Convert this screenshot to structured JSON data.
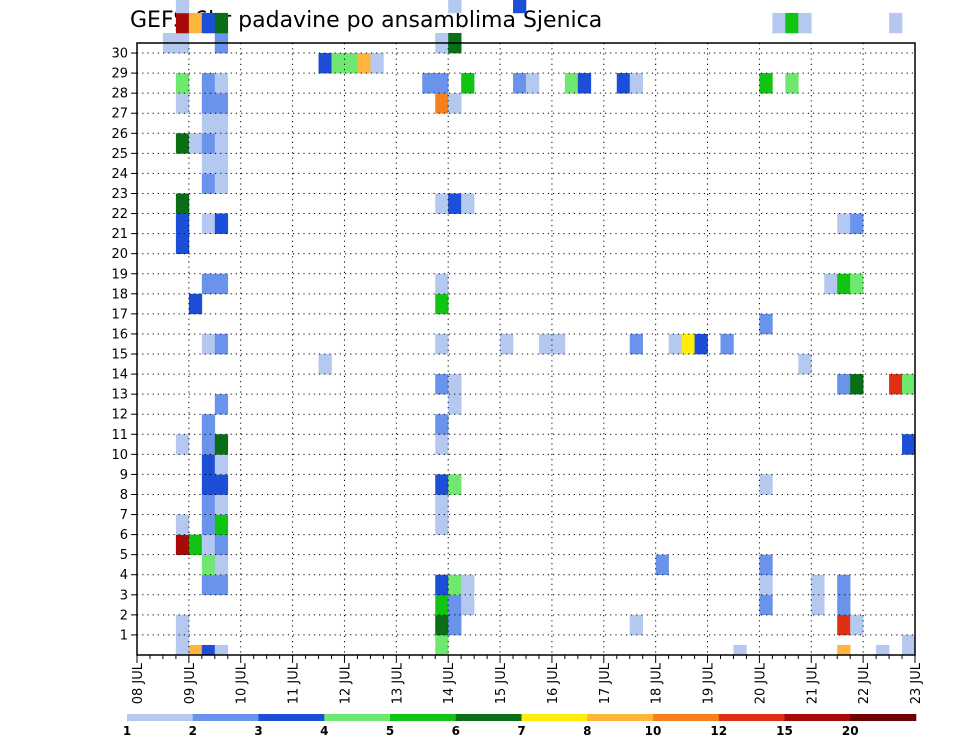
{
  "chart_data": {
    "type": "heatmap",
    "title": "GEFS 6hr padavine po ansamblima Sjenica",
    "xlabel": "",
    "ylabel": "",
    "x_ticks": [
      "08 JUL",
      "09 JUL",
      "10 JUL",
      "11 JUL",
      "12 JUL",
      "13 JUL",
      "14 JUL",
      "15 JUL",
      "16 JUL",
      "17 JUL",
      "18 JUL",
      "19 JUL",
      "20 JUL",
      "21 JUL",
      "22 JUL",
      "23 JUL"
    ],
    "x_range_days": [
      0,
      15
    ],
    "x_step_days": 0.25,
    "y_ticks": [
      "1",
      "2",
      "3",
      "4",
      "5",
      "6",
      "7",
      "8",
      "9",
      "10",
      "11",
      "12",
      "13",
      "14",
      "15",
      "16",
      "17",
      "18",
      "19",
      "20",
      "21",
      "22",
      "23",
      "24",
      "25",
      "26",
      "27",
      "28",
      "29",
      "30"
    ],
    "y_range": [
      0,
      30
    ],
    "grid": true,
    "legend": {
      "position": "bottom",
      "labels": [
        "1",
        "2",
        "3",
        "4",
        "5",
        "6",
        "7",
        "8",
        "10",
        "12",
        "15",
        "20"
      ],
      "colors": [
        "#b4c8f0",
        "#6a94ec",
        "#1c4ed8",
        "#6ee86e",
        "#12c412",
        "#0a6e16",
        "#ffec0a",
        "#ffb43c",
        "#f8801c",
        "#e03014",
        "#a80a0a",
        "#6e0000"
      ]
    },
    "cells": [
      [
        0.75,
        0,
        6
      ],
      [
        1,
        0,
        7
      ],
      [
        1.25,
        0,
        2
      ],
      [
        1.5,
        0,
        0
      ],
      [
        11.5,
        0,
        0
      ],
      [
        13.5,
        0,
        7
      ],
      [
        14.25,
        0,
        0
      ],
      [
        0.75,
        1,
        0
      ],
      [
        5.75,
        1,
        3
      ],
      [
        14.75,
        1,
        0
      ],
      [
        0.75,
        2,
        0
      ],
      [
        5.75,
        2,
        5
      ],
      [
        6,
        2,
        1
      ],
      [
        9.5,
        2,
        0
      ],
      [
        13.5,
        2,
        9
      ],
      [
        13.75,
        2,
        0
      ],
      [
        5.75,
        3,
        4
      ],
      [
        6,
        3,
        1
      ],
      [
        6.25,
        3,
        0
      ],
      [
        12,
        3,
        1
      ],
      [
        13,
        3,
        0
      ],
      [
        13.5,
        3,
        1
      ],
      [
        1.25,
        4,
        1
      ],
      [
        1.5,
        4,
        1
      ],
      [
        5.75,
        4,
        2
      ],
      [
        6,
        4,
        3
      ],
      [
        6.25,
        4,
        0
      ],
      [
        12,
        4,
        0
      ],
      [
        13,
        4,
        0
      ],
      [
        13.5,
        4,
        1
      ],
      [
        1.25,
        5,
        3
      ],
      [
        1.5,
        5,
        0
      ],
      [
        10,
        5,
        1
      ],
      [
        12,
        5,
        1
      ],
      [
        0.75,
        6,
        10
      ],
      [
        1,
        6,
        4
      ],
      [
        1.25,
        6,
        0
      ],
      [
        1.5,
        6,
        1
      ],
      [
        0.75,
        7,
        0
      ],
      [
        1.25,
        7,
        1
      ],
      [
        1.5,
        7,
        4
      ],
      [
        5.75,
        7,
        0
      ],
      [
        1.25,
        8,
        1
      ],
      [
        1.5,
        8,
        0
      ],
      [
        5.75,
        8,
        0
      ],
      [
        1.25,
        9,
        2
      ],
      [
        1.5,
        9,
        2
      ],
      [
        5.75,
        9,
        2
      ],
      [
        6,
        9,
        3
      ],
      [
        12,
        9,
        0
      ],
      [
        1.25,
        10,
        2
      ],
      [
        1.5,
        10,
        0
      ],
      [
        0.75,
        11,
        0
      ],
      [
        1.25,
        11,
        1
      ],
      [
        1.5,
        11,
        5
      ],
      [
        5.75,
        11,
        0
      ],
      [
        14.75,
        11,
        2
      ],
      [
        1.25,
        12,
        1
      ],
      [
        5.75,
        12,
        1
      ],
      [
        1.5,
        13,
        1
      ],
      [
        6,
        13,
        0
      ],
      [
        5.75,
        14,
        1
      ],
      [
        6,
        14,
        0
      ],
      [
        13.5,
        14,
        1
      ],
      [
        13.75,
        14,
        5
      ],
      [
        14.5,
        14,
        9
      ],
      [
        14.75,
        14,
        3
      ],
      [
        3.5,
        15,
        0
      ],
      [
        12.75,
        15,
        0
      ],
      [
        1.25,
        16,
        0
      ],
      [
        1.5,
        16,
        1
      ],
      [
        5.75,
        16,
        0
      ],
      [
        7,
        16,
        0
      ],
      [
        7.75,
        16,
        0
      ],
      [
        8,
        16,
        0
      ],
      [
        9.5,
        16,
        1
      ],
      [
        10.25,
        16,
        0
      ],
      [
        10.5,
        16,
        6
      ],
      [
        10.75,
        16,
        2
      ],
      [
        11.25,
        16,
        1
      ],
      [
        12,
        17,
        1
      ],
      [
        1,
        18,
        2
      ],
      [
        5.75,
        18,
        4
      ],
      [
        1.25,
        19,
        1
      ],
      [
        1.5,
        19,
        1
      ],
      [
        5.75,
        19,
        0
      ],
      [
        13.25,
        19,
        0
      ],
      [
        13.5,
        19,
        4
      ],
      [
        13.75,
        19,
        3
      ],
      [
        0.75,
        21,
        2
      ],
      [
        0.75,
        22,
        2
      ],
      [
        1.25,
        22,
        0
      ],
      [
        1.5,
        22,
        2
      ],
      [
        13.5,
        22,
        0
      ],
      [
        13.75,
        22,
        1
      ],
      [
        0.75,
        23,
        5
      ],
      [
        5.75,
        23,
        0
      ],
      [
        6,
        23,
        2
      ],
      [
        6.25,
        23,
        0
      ],
      [
        1.25,
        24,
        1
      ],
      [
        1.5,
        24,
        0
      ],
      [
        1.25,
        25,
        0
      ],
      [
        1.5,
        25,
        0
      ],
      [
        0.75,
        26,
        5
      ],
      [
        1,
        26,
        0
      ],
      [
        1.25,
        26,
        1
      ],
      [
        1.5,
        26,
        0
      ],
      [
        1.25,
        27,
        0
      ],
      [
        1.5,
        27,
        0
      ],
      [
        0.75,
        28,
        0
      ],
      [
        1.25,
        28,
        1
      ],
      [
        1.5,
        28,
        1
      ],
      [
        5.75,
        28,
        8
      ],
      [
        6,
        28,
        0
      ],
      [
        0.75,
        29,
        3
      ],
      [
        1.25,
        29,
        1
      ],
      [
        1.5,
        29,
        0
      ],
      [
        5.5,
        29,
        1
      ],
      [
        5.75,
        29,
        1
      ],
      [
        6.25,
        29,
        4
      ],
      [
        7.25,
        29,
        1
      ],
      [
        7.5,
        29,
        0
      ],
      [
        8.25,
        29,
        3
      ],
      [
        8.5,
        29,
        2
      ],
      [
        9.25,
        29,
        2
      ],
      [
        9.5,
        29,
        0
      ],
      [
        12,
        29,
        4
      ],
      [
        12.5,
        29,
        3
      ],
      [
        3.5,
        30,
        2
      ],
      [
        3.75,
        30,
        3
      ],
      [
        4,
        30,
        3
      ],
      [
        4.25,
        30,
        7
      ],
      [
        4.5,
        30,
        0
      ],
      [
        0.5,
        31,
        0
      ],
      [
        0.75,
        31,
        0
      ],
      [
        1.5,
        31,
        1
      ],
      [
        5.75,
        31,
        0
      ],
      [
        6,
        31,
        5
      ],
      [
        0.75,
        32,
        10
      ],
      [
        1,
        32,
        7
      ],
      [
        1.25,
        32,
        2
      ],
      [
        1.5,
        32,
        5
      ],
      [
        12.25,
        32,
        0
      ],
      [
        12.5,
        32,
        4
      ],
      [
        12.75,
        32,
        0
      ],
      [
        14.5,
        32,
        0
      ],
      [
        0.75,
        33,
        0
      ],
      [
        6,
        33,
        0
      ],
      [
        7.25,
        33,
        2
      ]
    ]
  }
}
